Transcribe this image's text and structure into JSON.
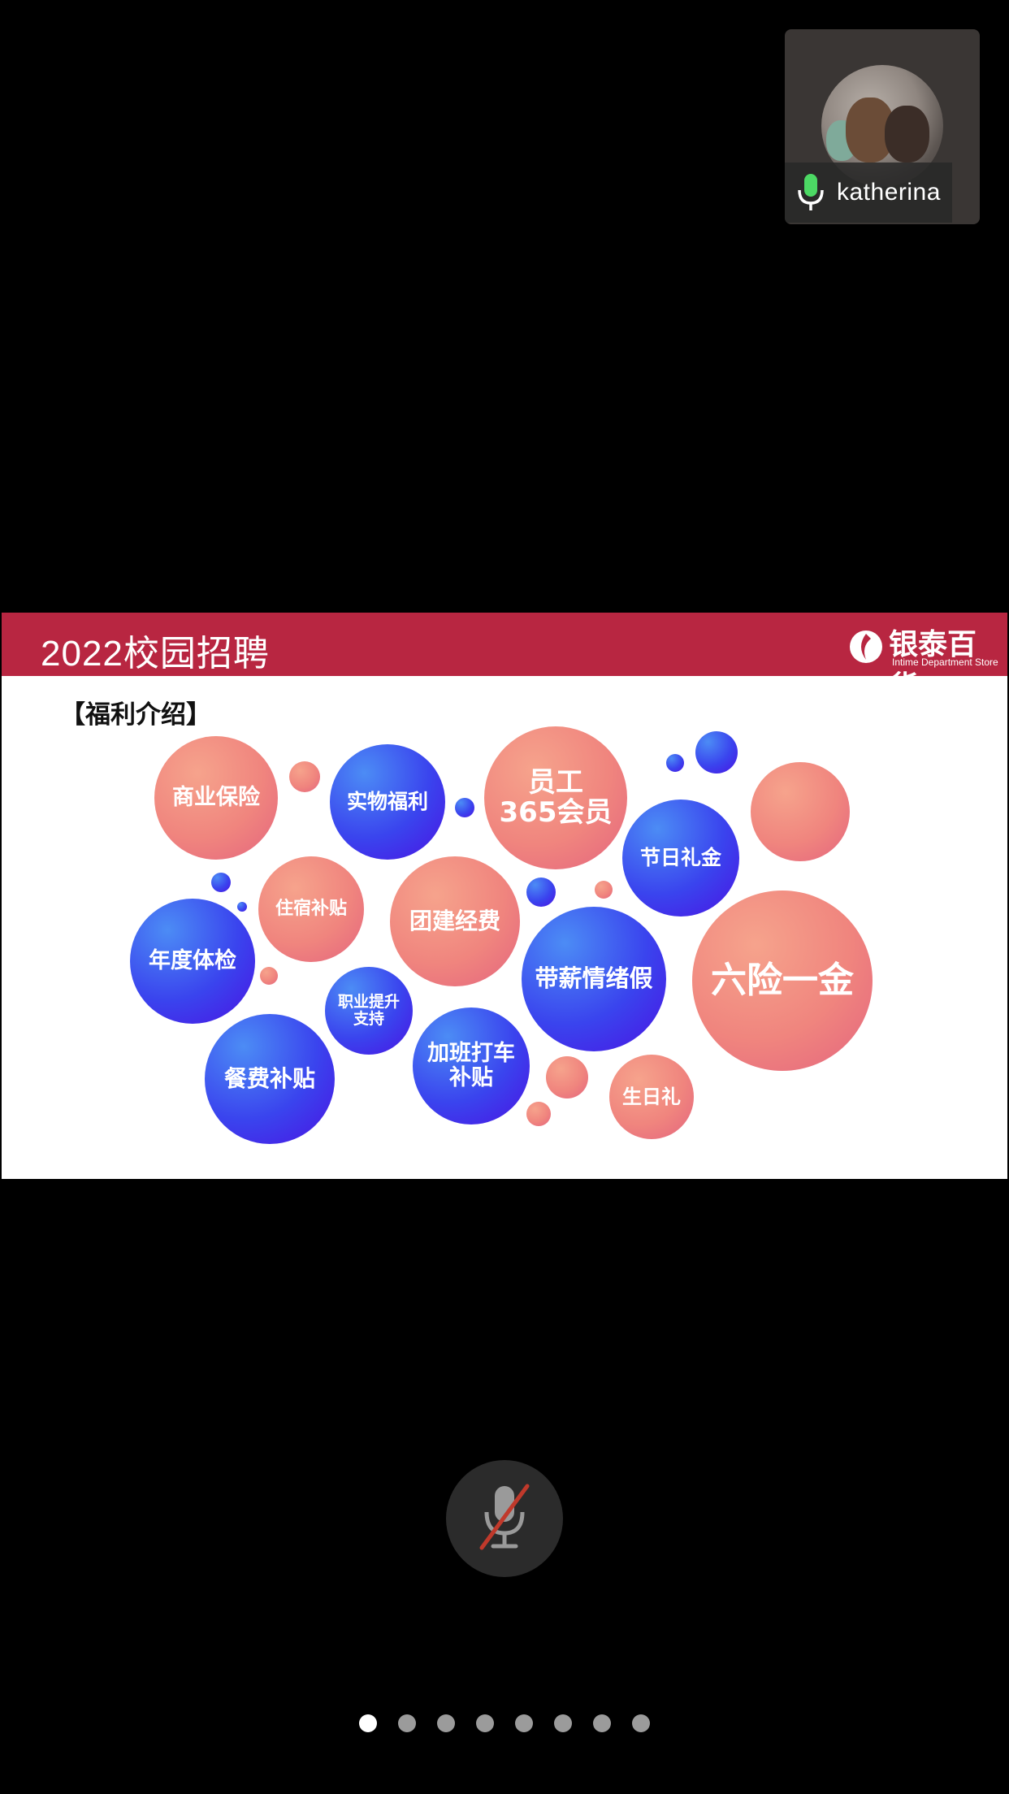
{
  "participant": {
    "name": "katherina",
    "mic_icon": "microphone-active-icon",
    "avatar": "avatar-photo"
  },
  "slide": {
    "title": "2022校园招聘",
    "logo_text": "银泰百货",
    "logo_subtext": "Intime Department Store",
    "section_heading": "【福利介绍】",
    "bubbles": [
      {
        "label": "商业保险"
      },
      {
        "label": "实物福利"
      },
      {
        "label": "员工\n365会员"
      },
      {
        "label": "节日礼金"
      },
      {
        "label": "住宿补贴"
      },
      {
        "label": "团建经费"
      },
      {
        "label": "年度体检"
      },
      {
        "label": "带薪情绪假"
      },
      {
        "label": "六险一金"
      },
      {
        "label": "职业提升\n支持"
      },
      {
        "label": "餐费补贴"
      },
      {
        "label": "加班打车\n补贴"
      },
      {
        "label": "生日礼"
      }
    ]
  },
  "controls": {
    "mute_icon": "microphone-muted-icon"
  },
  "pagination": {
    "total": 8,
    "current": 1
  },
  "colors": {
    "header_red": "#b82641",
    "bubble_pink": "#f0857e",
    "bubble_blue": "#3a44ee"
  }
}
